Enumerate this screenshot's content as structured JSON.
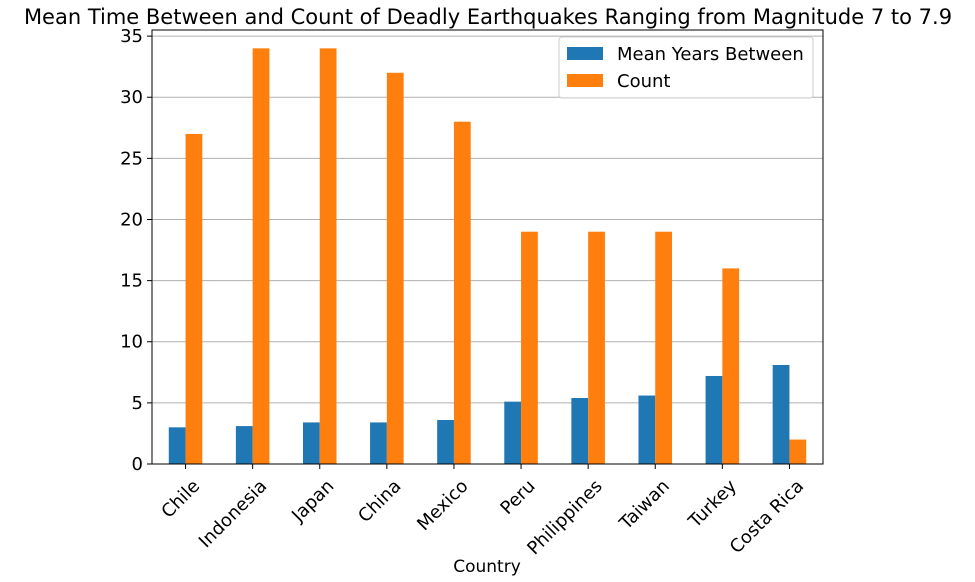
{
  "chart_data": {
    "type": "bar",
    "title": "Mean Time Between and Count of Deadly Earthquakes Ranging from Magnitude 7 to 7.9",
    "xlabel": "Country",
    "ylabel": "",
    "ylim": [
      0,
      35.5
    ],
    "yticks": [
      0,
      5,
      10,
      15,
      20,
      25,
      30,
      35
    ],
    "grid": "horizontal",
    "legend_position": "top-right",
    "categories": [
      "Chile",
      "Indonesia",
      "Japan",
      "China",
      "Mexico",
      "Peru",
      "Philippines",
      "Taiwan",
      "Turkey",
      "Costa Rica"
    ],
    "series": [
      {
        "name": "Mean Years Between",
        "color": "#1f77b4",
        "values": [
          3.0,
          3.1,
          3.4,
          3.4,
          3.6,
          5.1,
          5.4,
          5.6,
          7.2,
          8.1
        ]
      },
      {
        "name": "Count",
        "color": "#ff7f0e",
        "values": [
          27,
          34,
          34,
          32,
          28,
          19,
          19,
          19,
          16,
          2
        ]
      }
    ]
  }
}
